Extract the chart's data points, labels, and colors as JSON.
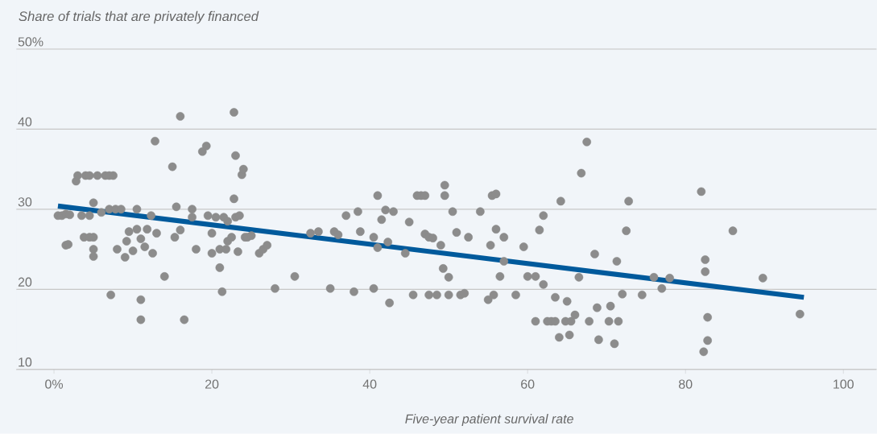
{
  "chart_data": {
    "type": "scatter",
    "ylabel": "Share of trials that are privately financed",
    "xlabel": "Five-year patient survival rate",
    "xlim": [
      -4.8,
      104.2
    ],
    "ylim": [
      10,
      51
    ],
    "xticks": [
      {
        "value": 0,
        "label": "0%"
      },
      20,
      40,
      60,
      80,
      100
    ],
    "yticks": [
      10,
      20,
      30,
      40,
      {
        "value": 50,
        "label": "50%"
      }
    ],
    "grid": "y",
    "series": [
      {
        "marker": "circle",
        "color": "#8c8c8c",
        "x": [
          0.5,
          1,
          1.5,
          2,
          2.8,
          3.5,
          3,
          4,
          4.5,
          1.5,
          1.8,
          3.8,
          4.5,
          5,
          5,
          5,
          5,
          4.5,
          5.5,
          6,
          6.5,
          7,
          7.5,
          7,
          7.2,
          7.8,
          8,
          8.5,
          9,
          9.2,
          9.5,
          10,
          10.5,
          10.5,
          11,
          11,
          11,
          11.5,
          11.8,
          12.3,
          12.5,
          12.8,
          13,
          14,
          15,
          15.3,
          15.5,
          16,
          16.5,
          16,
          17.5,
          17.5,
          18,
          18.8,
          19.3,
          19.5,
          20,
          20,
          20.5,
          21,
          21,
          21.3,
          21.5,
          21.8,
          22,
          22,
          22.5,
          22.8,
          22.8,
          23,
          23,
          23.3,
          23.5,
          23.8,
          24,
          24.2,
          24.5,
          25,
          26,
          26.5,
          27,
          28,
          30.5,
          32.5,
          33.5,
          35,
          35.5,
          36,
          37,
          38,
          38.5,
          38.8,
          40.5,
          40.5,
          41,
          41,
          41.5,
          42,
          42.3,
          42.5,
          43,
          44.5,
          45,
          45.5,
          46,
          46.5,
          47,
          47,
          47.5,
          47.5,
          48,
          48.5,
          49,
          49.3,
          49.5,
          49.5,
          50,
          50,
          50.5,
          51,
          51.5,
          52,
          52.5,
          54,
          55,
          55.3,
          55.5,
          55.7,
          56,
          56,
          56.5,
          57,
          57,
          58.5,
          59.5,
          60,
          61,
          61,
          61.5,
          62,
          62,
          62.5,
          63,
          63.5,
          63.5,
          64,
          64.2,
          64.8,
          65,
          65.3,
          65.5,
          66,
          66.5,
          66.8,
          67.5,
          67.8,
          68.5,
          68.8,
          69,
          70.3,
          70.5,
          71,
          71.3,
          71.5,
          72,
          72.5,
          72.8,
          74.5,
          76,
          77,
          78,
          82,
          82.5,
          82.5,
          82.3,
          82.8,
          82.8,
          86,
          89.8,
          94.5
        ],
        "values": [
          29.2,
          29.2,
          29.4,
          29.3,
          33.5,
          29.2,
          34.2,
          34.2,
          29.2,
          25.5,
          25.6,
          26.5,
          26.5,
          30.8,
          26.5,
          25.0,
          24.1,
          34.2,
          34.2,
          29.6,
          34.2,
          34.2,
          34.2,
          30.0,
          19.3,
          30.0,
          25.0,
          30.0,
          24.0,
          26.0,
          27.2,
          24.8,
          30.0,
          27.5,
          26.3,
          18.7,
          16.2,
          25.3,
          27.5,
          29.2,
          24.5,
          38.5,
          27.0,
          21.6,
          35.3,
          26.5,
          30.3,
          41.6,
          16.2,
          27.4,
          30.0,
          29.0,
          25.0,
          37.2,
          37.9,
          29.2,
          24.5,
          27.0,
          29.0,
          25.0,
          22.7,
          19.7,
          29.0,
          25.0,
          26.0,
          28.5,
          26.5,
          42.1,
          31.3,
          36.7,
          29.0,
          24.7,
          29.2,
          34.3,
          35.0,
          26.5,
          26.5,
          26.7,
          24.5,
          25.0,
          25.5,
          20.1,
          21.6,
          27.0,
          27.2,
          20.1,
          27.2,
          26.8,
          29.2,
          19.7,
          29.7,
          27.2,
          20.1,
          26.5,
          25.2,
          31.7,
          28.7,
          29.9,
          25.9,
          18.3,
          29.7,
          24.5,
          28.4,
          19.3,
          31.7,
          31.7,
          31.7,
          26.9,
          26.5,
          19.3,
          26.4,
          19.3,
          25.5,
          22.6,
          33.0,
          31.7,
          21.5,
          19.3,
          29.7,
          27.1,
          19.3,
          19.5,
          26.5,
          29.7,
          18.7,
          25.5,
          31.7,
          19.3,
          31.9,
          27.5,
          21.6,
          26.5,
          23.5,
          19.3,
          25.3,
          21.6,
          21.6,
          16.0,
          27.4,
          29.2,
          20.6,
          16.0,
          16.0,
          19.0,
          16.0,
          14.0,
          31.0,
          16.0,
          18.5,
          14.3,
          16.0,
          16.8,
          21.5,
          34.5,
          38.4,
          16.0,
          24.4,
          17.7,
          13.7,
          16.0,
          17.9,
          13.2,
          23.5,
          16.0,
          19.4,
          27.3,
          31.0,
          19.3,
          21.5,
          20.1,
          21.4,
          32.2,
          23.7,
          22.2,
          12.2,
          16.5,
          13.6,
          27.3,
          21.4,
          16.9
        ]
      },
      {
        "type": "line",
        "marker": "none",
        "color": "#005a9c",
        "x": [
          0.5,
          95
        ],
        "values": [
          30.4,
          19.0
        ]
      }
    ]
  }
}
